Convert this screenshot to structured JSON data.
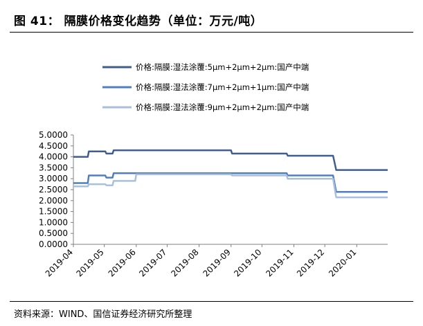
{
  "figure": {
    "title": "图 41：  隔膜价格变化趋势（单位：万元/吨）",
    "source": "资料来源：WIND、国信证券经济研究所整理"
  },
  "chart_data": {
    "type": "line",
    "title": "",
    "xlabel": "",
    "ylabel": "",
    "x_range": [
      "2019-04-01",
      "2020-01-31"
    ],
    "ylim": [
      0,
      5
    ],
    "y_ticks": [
      "5.0000",
      "4.5000",
      "4.0000",
      "3.5000",
      "3.0000",
      "2.5000",
      "2.0000",
      "1.5000",
      "1.0000",
      "0.5000",
      "0.0000"
    ],
    "x_ticks": [
      "2019-04",
      "2019-05",
      "2019-06",
      "2019-07",
      "2019-08",
      "2019-09",
      "2019-10",
      "2019-11",
      "2019-12",
      "2020-01"
    ],
    "legend_position": "top",
    "grid": false,
    "series": [
      {
        "name": "价格:隔膜:湿法涂覆:5μm+2μm+2μm:国产中端",
        "color": "#3f5e8f",
        "points": [
          [
            "2019-04-01",
            4.0
          ],
          [
            "2019-04-15",
            4.0
          ],
          [
            "2019-04-16",
            4.25
          ],
          [
            "2019-05-02",
            4.25
          ],
          [
            "2019-05-03",
            4.15
          ],
          [
            "2019-05-09",
            4.15
          ],
          [
            "2019-05-10",
            4.3
          ],
          [
            "2019-09-01",
            4.3
          ],
          [
            "2019-09-02",
            4.15
          ],
          [
            "2019-10-25",
            4.15
          ],
          [
            "2019-10-26",
            4.05
          ],
          [
            "2019-12-09",
            4.05
          ],
          [
            "2019-12-12",
            3.4
          ],
          [
            "2020-01-31",
            3.4
          ]
        ]
      },
      {
        "name": "价格:隔膜:湿法涂覆:7μm+2μm+1μm:国产中端",
        "color": "#4f7fc1",
        "points": [
          [
            "2019-04-01",
            2.8
          ],
          [
            "2019-04-15",
            2.8
          ],
          [
            "2019-04-16",
            3.15
          ],
          [
            "2019-05-02",
            3.15
          ],
          [
            "2019-05-03",
            3.05
          ],
          [
            "2019-05-09",
            3.05
          ],
          [
            "2019-05-10",
            3.25
          ],
          [
            "2019-10-25",
            3.25
          ],
          [
            "2019-10-26",
            3.15
          ],
          [
            "2019-12-09",
            3.15
          ],
          [
            "2019-12-12",
            2.4
          ],
          [
            "2020-01-31",
            2.4
          ]
        ]
      },
      {
        "name": "价格:隔膜:湿法涂覆:9μm+2μm+2μm:国产中端",
        "color": "#a9bfde",
        "points": [
          [
            "2019-04-01",
            2.65
          ],
          [
            "2019-04-15",
            2.65
          ],
          [
            "2019-04-16",
            2.75
          ],
          [
            "2019-05-02",
            2.75
          ],
          [
            "2019-05-03",
            2.7
          ],
          [
            "2019-05-09",
            2.7
          ],
          [
            "2019-05-10",
            2.9
          ],
          [
            "2019-05-31",
            2.9
          ],
          [
            "2019-06-01",
            3.2
          ],
          [
            "2019-09-01",
            3.2
          ],
          [
            "2019-09-02",
            3.15
          ],
          [
            "2019-10-25",
            3.15
          ],
          [
            "2019-10-26",
            3.0
          ],
          [
            "2019-12-09",
            3.0
          ],
          [
            "2019-12-12",
            2.15
          ],
          [
            "2020-01-31",
            2.15
          ]
        ]
      }
    ]
  }
}
